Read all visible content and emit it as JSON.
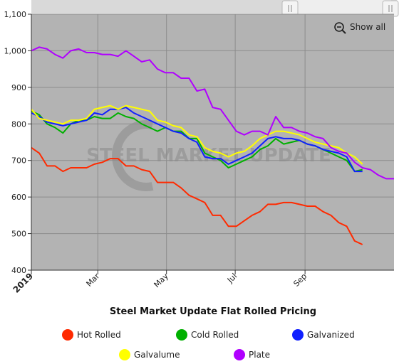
{
  "controls": {
    "show_all_label": "Show all",
    "zoom_icon": "zoom-out-icon",
    "navigator": "range-navigator"
  },
  "watermark": {
    "text": "STEEL MARKET UPDATE"
  },
  "chart_data": {
    "type": "line",
    "title": "Steel Market Update Flat Rolled Pricing",
    "xlabel": "",
    "ylabel": "",
    "ylim": [
      400,
      1100
    ],
    "yticks": [
      400,
      500,
      600,
      700,
      800,
      900,
      "1,000",
      "1,100"
    ],
    "xlim": [
      "2019-01-01",
      "2019-11-19"
    ],
    "xticks": [
      {
        "label": "2019",
        "date": "2019-01-01",
        "bold": true
      },
      {
        "label": "Mar",
        "date": "2019-03-01",
        "bold": false
      },
      {
        "label": "May",
        "date": "2019-05-01",
        "bold": false
      },
      {
        "label": "Jul",
        "date": "2019-07-01",
        "bold": false
      },
      {
        "label": "Sep",
        "date": "2019-09-01",
        "bold": false
      }
    ],
    "grid": true,
    "legend_position": "bottom",
    "dates": [
      "2019-01-01",
      "2019-01-08",
      "2019-01-15",
      "2019-01-22",
      "2019-01-29",
      "2019-02-05",
      "2019-02-12",
      "2019-02-19",
      "2019-02-26",
      "2019-03-05",
      "2019-03-12",
      "2019-03-19",
      "2019-03-26",
      "2019-04-02",
      "2019-04-09",
      "2019-04-16",
      "2019-04-23",
      "2019-04-30",
      "2019-05-07",
      "2019-05-14",
      "2019-05-21",
      "2019-05-28",
      "2019-06-04",
      "2019-06-11",
      "2019-06-18",
      "2019-06-25",
      "2019-07-02",
      "2019-07-09",
      "2019-07-16",
      "2019-07-23",
      "2019-07-30",
      "2019-08-06",
      "2019-08-13",
      "2019-08-20",
      "2019-08-27",
      "2019-09-03",
      "2019-09-10",
      "2019-09-17",
      "2019-09-24",
      "2019-10-01",
      "2019-10-08",
      "2019-10-15",
      "2019-10-22",
      "2019-10-29",
      "2019-11-05",
      "2019-11-12",
      "2019-11-19"
    ],
    "series": [
      {
        "name": "Hot Rolled",
        "color": "#ff2a00",
        "values": [
          735,
          720,
          685,
          685,
          670,
          680,
          680,
          680,
          690,
          695,
          705,
          705,
          685,
          685,
          675,
          670,
          640,
          640,
          640,
          625,
          605,
          595,
          585,
          550,
          550,
          520,
          520,
          535,
          550,
          560,
          580,
          580,
          585,
          585,
          580,
          575,
          575,
          560,
          550,
          530,
          520,
          480,
          470,
          null,
          null,
          null,
          null
        ]
      },
      {
        "name": "Cold Rolled",
        "color": "#00b000",
        "values": [
          835,
          825,
          800,
          790,
          775,
          800,
          810,
          810,
          820,
          815,
          815,
          830,
          820,
          815,
          800,
          790,
          780,
          790,
          780,
          780,
          760,
          760,
          720,
          710,
          700,
          680,
          690,
          700,
          710,
          730,
          740,
          760,
          745,
          750,
          755,
          745,
          740,
          730,
          720,
          710,
          700,
          670,
          675,
          null,
          null,
          null,
          null
        ]
      },
      {
        "name": "Galvanized",
        "color": "#1020ff",
        "values": [
          830,
          820,
          805,
          800,
          795,
          800,
          805,
          810,
          830,
          825,
          840,
          840,
          845,
          830,
          820,
          810,
          800,
          790,
          780,
          775,
          760,
          750,
          710,
          705,
          705,
          690,
          700,
          710,
          720,
          740,
          760,
          765,
          760,
          760,
          755,
          745,
          740,
          730,
          725,
          720,
          710,
          670,
          670,
          null,
          null,
          null,
          null
        ]
      },
      {
        "name": "Galvalume",
        "color": "#ffff00",
        "values": [
          840,
          815,
          810,
          805,
          800,
          810,
          810,
          815,
          840,
          845,
          850,
          840,
          850,
          845,
          840,
          835,
          810,
          805,
          795,
          790,
          770,
          765,
          735,
          725,
          720,
          710,
          720,
          725,
          740,
          760,
          770,
          780,
          780,
          775,
          770,
          760,
          750,
          745,
          740,
          735,
          720,
          710,
          690,
          null,
          null,
          null,
          null
        ]
      },
      {
        "name": "Plate",
        "color": "#b000ff",
        "values": [
          1000,
          1010,
          1005,
          990,
          980,
          1000,
          1005,
          995,
          995,
          990,
          990,
          985,
          1000,
          985,
          970,
          975,
          950,
          940,
          940,
          925,
          925,
          890,
          895,
          845,
          840,
          810,
          780,
          770,
          780,
          780,
          770,
          820,
          790,
          790,
          780,
          775,
          765,
          760,
          735,
          725,
          720,
          695,
          680,
          675,
          660,
          650,
          650
        ]
      }
    ]
  }
}
